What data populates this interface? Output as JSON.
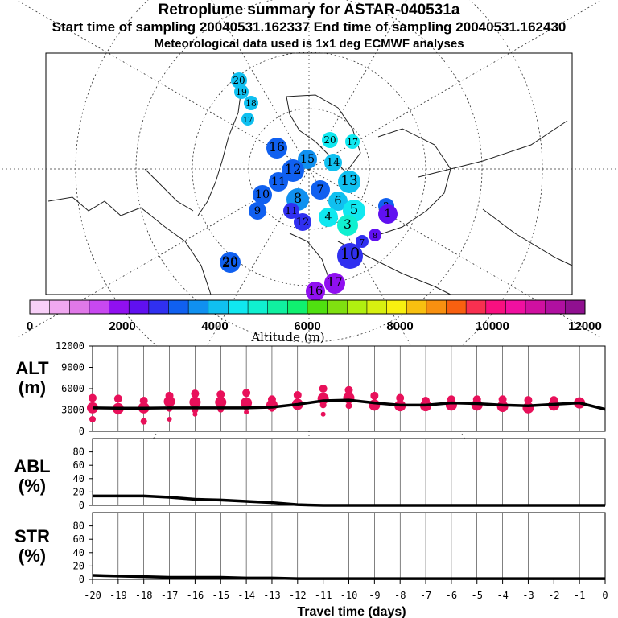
{
  "header": {
    "title": "Retroplume summary for ASTAR-040531a",
    "sampling": "Start time of sampling 20040531.162337     End time of sampling 20040531.162430",
    "met": "Meteorological data used is 1x1 deg ECMWF analyses"
  },
  "colorbar": {
    "label": "Altitude (m)",
    "ticks": [
      "0",
      "2000",
      "4000",
      "6000",
      "8000",
      "10000",
      "12000"
    ],
    "colors": [
      "#f8d0f8",
      "#f0a8f0",
      "#e078e8",
      "#c848f0",
      "#9010f0",
      "#6010f0",
      "#3030f0",
      "#1060f0",
      "#1090f0",
      "#10c0f0",
      "#10e8f0",
      "#10f0d0",
      "#10f0a0",
      "#10f070",
      "#50e010",
      "#80e010",
      "#b0f010",
      "#d8f010",
      "#f8f010",
      "#f8c010",
      "#f89010",
      "#f86010",
      "#f83050",
      "#f81080",
      "#f010a0",
      "#d010a0",
      "#b010a0",
      "#901090"
    ]
  },
  "map": {
    "plume_labels": [
      "20",
      "19",
      "18",
      "17",
      "16",
      "15",
      "14",
      "13",
      "12",
      "11",
      "10",
      "9",
      "8",
      "7",
      "6",
      "5",
      "4",
      "3",
      "2",
      "1"
    ],
    "sample_label": "20"
  },
  "chart_data": [
    {
      "type": "scatter",
      "panel": "ALT",
      "ylabel": "ALT\n(m)",
      "ylabel_lines": [
        "ALT",
        "(m)"
      ],
      "ylim": [
        0,
        12000
      ],
      "yticks": [
        "0",
        "3000",
        "6000",
        "9000",
        "12000"
      ],
      "xlim": [
        -20,
        0
      ],
      "median_line": {
        "x": [
          -20,
          -19,
          -18,
          -17,
          -16,
          -15,
          -14,
          -13,
          -12,
          -11,
          -10,
          -9,
          -8,
          -7,
          -6,
          -5,
          -4,
          -3,
          -2,
          -1,
          0
        ],
        "y": [
          3300,
          3250,
          3250,
          3300,
          3300,
          3300,
          3300,
          3400,
          3800,
          4300,
          4400,
          4000,
          3700,
          3700,
          4000,
          3900,
          3700,
          3600,
          3800,
          4000,
          3100
        ]
      },
      "clusters": [
        {
          "x": -20,
          "y": [
            4700,
            3300,
            1700
          ]
        },
        {
          "x": -19,
          "y": [
            4600,
            3200,
            2800
          ]
        },
        {
          "x": -18,
          "y": [
            4300,
            3300,
            1400
          ]
        },
        {
          "x": -17,
          "y": [
            5000,
            4200,
            3200,
            1700
          ]
        },
        {
          "x": -16,
          "y": [
            5300,
            4100,
            3000,
            2400
          ]
        },
        {
          "x": -15,
          "y": [
            5200,
            4100,
            3100
          ]
        },
        {
          "x": -14,
          "y": [
            5400,
            4000,
            3400,
            2700
          ]
        },
        {
          "x": -13,
          "y": [
            4500,
            3700,
            3200
          ]
        },
        {
          "x": -12,
          "y": [
            5100,
            3800
          ]
        },
        {
          "x": -11,
          "y": [
            6000,
            4600,
            3700,
            2400
          ]
        },
        {
          "x": -10,
          "y": [
            5800,
            4700,
            3600
          ]
        },
        {
          "x": -9,
          "y": [
            5000,
            3700
          ]
        },
        {
          "x": -8,
          "y": [
            4700,
            3600
          ]
        },
        {
          "x": -7,
          "y": [
            4300,
            3600
          ]
        },
        {
          "x": -6,
          "y": [
            4500,
            3700
          ]
        },
        {
          "x": -5,
          "y": [
            4500,
            3700
          ]
        },
        {
          "x": -4,
          "y": [
            4500,
            3500
          ]
        },
        {
          "x": -3,
          "y": [
            4400,
            3300
          ]
        },
        {
          "x": -2,
          "y": [
            4400,
            3700
          ]
        },
        {
          "x": -1,
          "y": [
            4200,
            4000
          ]
        }
      ]
    },
    {
      "type": "line",
      "panel": "ABL",
      "ylabel": "ABL\n(%)",
      "ylabel_lines": [
        "ABL",
        "(%)"
      ],
      "ylim": [
        0,
        100
      ],
      "yticks": [
        "0",
        "20",
        "40",
        "60",
        "80"
      ],
      "x": [
        -20,
        -19,
        -18,
        -17,
        -16,
        -15,
        -14,
        -13,
        -12,
        -11,
        -10,
        -9,
        -8,
        -7,
        -6,
        -5,
        -4,
        -3,
        -2,
        -1,
        0
      ],
      "y": [
        14,
        14,
        14,
        12,
        9,
        8,
        6,
        4,
        1,
        0,
        0,
        0,
        0,
        0,
        0,
        0,
        0,
        0,
        0,
        0,
        0
      ]
    },
    {
      "type": "line",
      "panel": "STR",
      "ylabel": "STR\n(%)",
      "ylabel_lines": [
        "STR",
        "(%)"
      ],
      "ylim": [
        0,
        100
      ],
      "yticks": [
        "0",
        "20",
        "40",
        "60",
        "80"
      ],
      "x": [
        -20,
        -19,
        -18,
        -17,
        -16,
        -15,
        -14,
        -13,
        -12,
        -11,
        -10,
        -9,
        -8,
        -7,
        -6,
        -5,
        -4,
        -3,
        -2,
        -1,
        0
      ],
      "y": [
        6,
        5,
        4,
        3,
        3,
        3,
        2,
        2,
        1,
        1,
        1,
        1,
        1,
        1,
        1,
        1,
        1,
        1,
        1,
        1,
        1
      ]
    }
  ],
  "xaxis": {
    "ticks": [
      "-20",
      "-19",
      "-18",
      "-17",
      "-16",
      "-15",
      "-14",
      "-13",
      "-12",
      "-11",
      "-10",
      "-9",
      "-8",
      "-7",
      "-6",
      "-5",
      "-4",
      "-3",
      "-2",
      "-1",
      "0"
    ],
    "label": "Travel time (days)"
  }
}
